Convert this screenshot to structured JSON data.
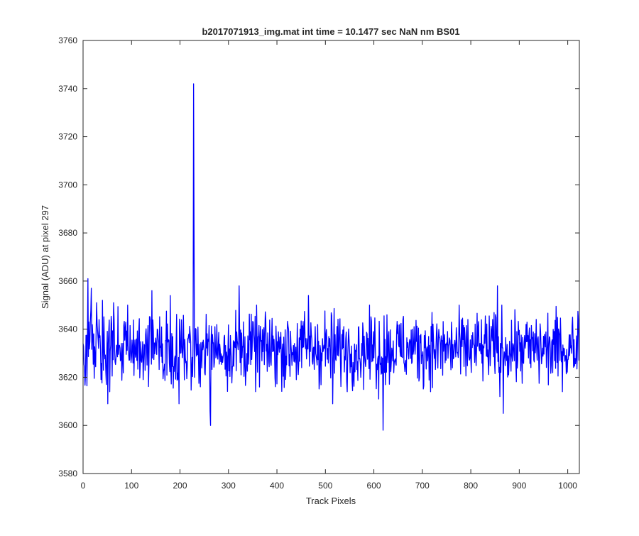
{
  "chart_data": {
    "type": "line",
    "title": "b2017071913_img.mat int time = 10.1477 sec  NaN nm BS01",
    "xlabel": "Track Pixels",
    "ylabel": "Signal (ADU) at pixel 297",
    "xlim": [
      0,
      1024
    ],
    "ylim": [
      3580,
      3760
    ],
    "xticks": [
      0,
      100,
      200,
      300,
      400,
      500,
      600,
      700,
      800,
      900,
      1000
    ],
    "yticks": [
      3580,
      3600,
      3620,
      3640,
      3660,
      3680,
      3700,
      3720,
      3740,
      3760
    ],
    "grid": false,
    "legend": "none",
    "noise_baseline": 3632,
    "series": [
      {
        "color": "#0000ff",
        "sample_count": 1024,
        "highlighted_points": [
          {
            "x": 0,
            "y": 3634
          },
          {
            "x": 10,
            "y": 3661
          },
          {
            "x": 12,
            "y": 3643
          },
          {
            "x": 17,
            "y": 3657
          },
          {
            "x": 28,
            "y": 3651
          },
          {
            "x": 40,
            "y": 3652
          },
          {
            "x": 48,
            "y": 3617
          },
          {
            "x": 51,
            "y": 3609
          },
          {
            "x": 63,
            "y": 3651
          },
          {
            "x": 142,
            "y": 3656
          },
          {
            "x": 180,
            "y": 3654
          },
          {
            "x": 198,
            "y": 3609
          },
          {
            "x": 228,
            "y": 3742
          },
          {
            "x": 229,
            "y": 3681
          },
          {
            "x": 230,
            "y": 3620
          },
          {
            "x": 262,
            "y": 3606
          },
          {
            "x": 263,
            "y": 3600
          },
          {
            "x": 322,
            "y": 3658
          },
          {
            "x": 465,
            "y": 3654
          },
          {
            "x": 515,
            "y": 3609
          },
          {
            "x": 610,
            "y": 3611
          },
          {
            "x": 619,
            "y": 3598
          },
          {
            "x": 855,
            "y": 3658
          },
          {
            "x": 860,
            "y": 3612
          },
          {
            "x": 867,
            "y": 3605
          },
          {
            "x": 1010,
            "y": 3645
          },
          {
            "x": 1022,
            "y": 3644
          }
        ]
      }
    ]
  }
}
